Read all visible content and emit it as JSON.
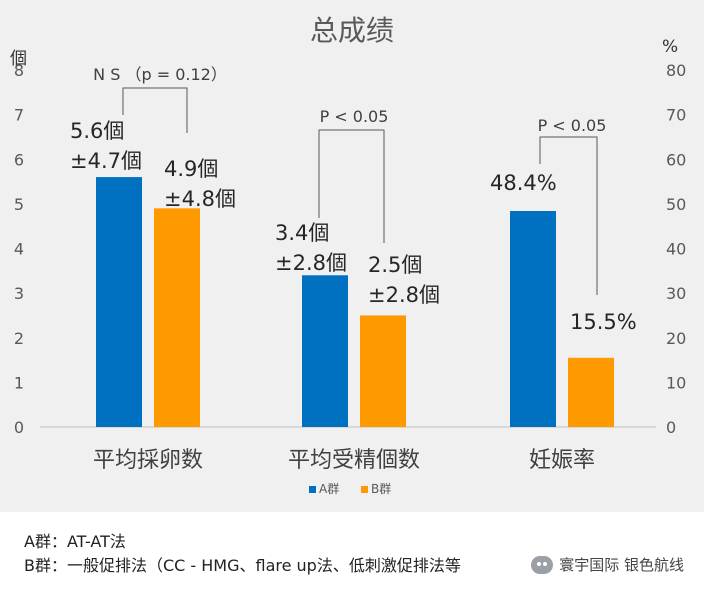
{
  "chart_data": {
    "type": "bar",
    "title": "总成绩",
    "left_axis_unit": "個",
    "right_axis_unit": "%",
    "left_ylim": [
      0,
      8
    ],
    "left_ticks": [
      "0",
      "1",
      "2",
      "3",
      "4",
      "5",
      "6",
      "7",
      "8"
    ],
    "right_ylim": [
      0,
      80
    ],
    "right_ticks": [
      "0",
      "10",
      "20",
      "30",
      "40",
      "50",
      "60",
      "70",
      "80"
    ],
    "categories": [
      "平均採卵数",
      "平均受精個数",
      "妊娠率"
    ],
    "category_axis": [
      "left",
      "left",
      "right"
    ],
    "series": [
      {
        "name": "A群",
        "color": "#0070c0",
        "values": [
          5.6,
          3.4,
          48.4
        ]
      },
      {
        "name": "B群",
        "color": "#ff9900",
        "values": [
          4.9,
          2.5,
          15.5
        ]
      }
    ],
    "data_labels": [
      [
        [
          "5.6個",
          "±4.7個"
        ],
        [
          "3.4個",
          "±2.8個"
        ],
        [
          "48.4%"
        ]
      ],
      [
        [
          "4.9個",
          "±4.8個"
        ],
        [
          "2.5個",
          "±2.8個"
        ],
        [
          "15.5%"
        ]
      ]
    ],
    "significance": [
      "N S （p = 0.12）",
      "P < 0.05",
      "P < 0.05"
    ],
    "legend_position": "bottom",
    "grid": false
  },
  "notes": {
    "line1": "A群：AT-AT法",
    "line2": "B群：一般促排法（CC - HMG、flare up法、低刺激促排法等"
  },
  "watermark": "寰宇国际 银色航线"
}
